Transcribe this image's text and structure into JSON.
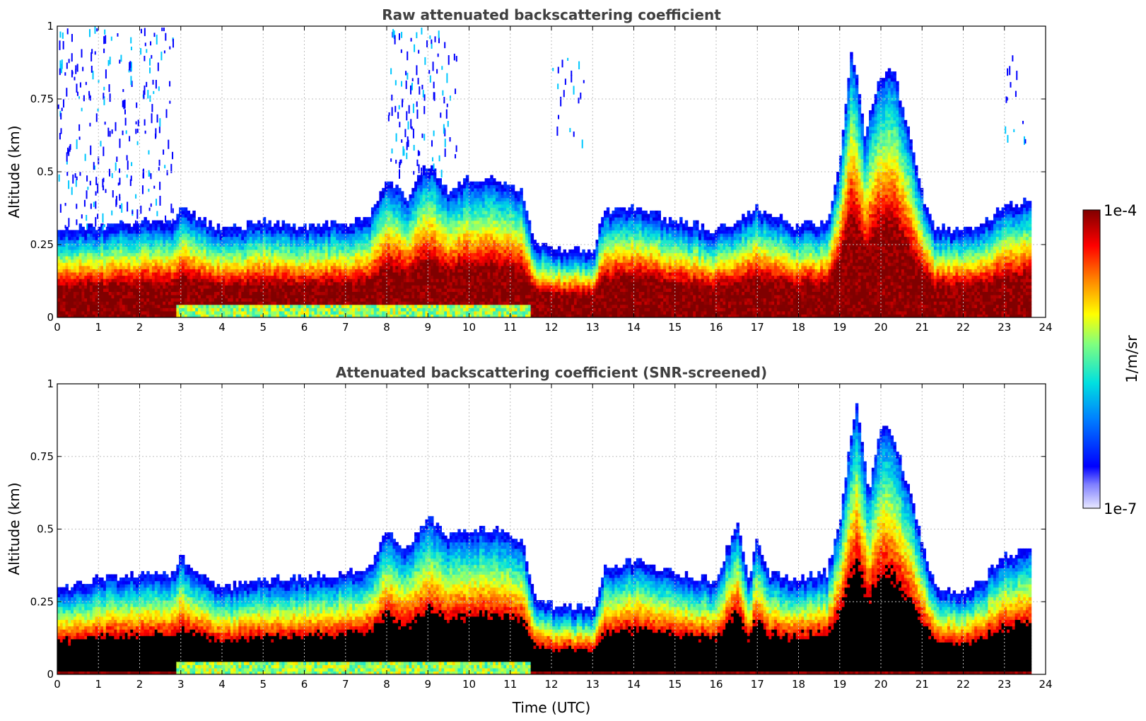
{
  "chart_data": [
    {
      "type": "heatmap",
      "title": "Raw attenuated backscattering coefficient",
      "xlabel": "",
      "ylabel": "Altitude (km)",
      "xlim": [
        0,
        24
      ],
      "ylim": [
        0,
        1
      ],
      "xticks": [
        "0",
        "1",
        "2",
        "3",
        "4",
        "5",
        "6",
        "7",
        "8",
        "9",
        "10",
        "11",
        "12",
        "13",
        "14",
        "15",
        "16",
        "17",
        "18",
        "19",
        "20",
        "21",
        "22",
        "23",
        "24"
      ],
      "yticks": [
        "0",
        "0.25",
        "0.5",
        "0.75",
        "1"
      ],
      "grid": true,
      "data_end_time": 23.65,
      "boundary_layer_top_km": [
        [
          0,
          0.27
        ],
        [
          1,
          0.28
        ],
        [
          2,
          0.3
        ],
        [
          2.8,
          0.3
        ],
        [
          3,
          0.35
        ],
        [
          4,
          0.27
        ],
        [
          5,
          0.3
        ],
        [
          6,
          0.28
        ],
        [
          7,
          0.3
        ],
        [
          7.5,
          0.3
        ],
        [
          8,
          0.45
        ],
        [
          8.5,
          0.38
        ],
        [
          9,
          0.5
        ],
        [
          9.5,
          0.4
        ],
        [
          10,
          0.45
        ],
        [
          10.7,
          0.45
        ],
        [
          11.3,
          0.4
        ],
        [
          11.6,
          0.23
        ],
        [
          12,
          0.21
        ],
        [
          13,
          0.2
        ],
        [
          13.3,
          0.33
        ],
        [
          14,
          0.35
        ],
        [
          15,
          0.3
        ],
        [
          16,
          0.27
        ],
        [
          16.5,
          0.3
        ],
        [
          17,
          0.35
        ],
        [
          18,
          0.28
        ],
        [
          18.7,
          0.3
        ],
        [
          19,
          0.5
        ],
        [
          19.3,
          0.9
        ],
        [
          19.6,
          0.6
        ],
        [
          20,
          0.8
        ],
        [
          20.3,
          0.82
        ],
        [
          20.6,
          0.65
        ],
        [
          21,
          0.4
        ],
        [
          21.3,
          0.28
        ],
        [
          22,
          0.27
        ],
        [
          22.5,
          0.29
        ],
        [
          23,
          0.35
        ],
        [
          23.65,
          0.38
        ]
      ],
      "notes": "Dense residual layer (~1e-4 1/m/sr) below ~0.2 km most of the day; elevated aerosol/cloud layers near 19-21 UTC up to ~0.9 km; sparse noise speckles above 0.5 km before 3 UTC and near 8-9.5 UTC."
    },
    {
      "type": "heatmap",
      "title": "Attenuated backscattering coefficient (SNR-screened)",
      "xlabel": "Time (UTC)",
      "ylabel": "Altitude (km)",
      "xlim": [
        0,
        24
      ],
      "ylim": [
        0,
        1
      ],
      "xticks": [
        "0",
        "1",
        "2",
        "3",
        "4",
        "5",
        "6",
        "7",
        "8",
        "9",
        "10",
        "11",
        "12",
        "13",
        "14",
        "15",
        "16",
        "17",
        "18",
        "19",
        "20",
        "21",
        "22",
        "23",
        "24"
      ],
      "yticks": [
        "0",
        "0.25",
        "0.5",
        "0.75",
        "1"
      ],
      "grid": true,
      "data_end_time": 23.65,
      "boundary_layer_top_km": [
        [
          0,
          0.26
        ],
        [
          1,
          0.3
        ],
        [
          2,
          0.32
        ],
        [
          2.8,
          0.32
        ],
        [
          3,
          0.37
        ],
        [
          4,
          0.27
        ],
        [
          5,
          0.3
        ],
        [
          6,
          0.3
        ],
        [
          7,
          0.32
        ],
        [
          7.5,
          0.32
        ],
        [
          8,
          0.47
        ],
        [
          8.5,
          0.4
        ],
        [
          9,
          0.52
        ],
        [
          9.5,
          0.45
        ],
        [
          10,
          0.47
        ],
        [
          10.7,
          0.47
        ],
        [
          11.3,
          0.42
        ],
        [
          11.6,
          0.23
        ],
        [
          12,
          0.21
        ],
        [
          13,
          0.2
        ],
        [
          13.3,
          0.33
        ],
        [
          14,
          0.36
        ],
        [
          15,
          0.32
        ],
        [
          16,
          0.29
        ],
        [
          16.5,
          0.5
        ],
        [
          16.8,
          0.3
        ],
        [
          17,
          0.44
        ],
        [
          17.3,
          0.32
        ],
        [
          18,
          0.3
        ],
        [
          18.7,
          0.32
        ],
        [
          19,
          0.5
        ],
        [
          19.4,
          0.92
        ],
        [
          19.7,
          0.6
        ],
        [
          20,
          0.82
        ],
        [
          20.3,
          0.8
        ],
        [
          20.7,
          0.6
        ],
        [
          21,
          0.42
        ],
        [
          21.3,
          0.28
        ],
        [
          22,
          0.25
        ],
        [
          22.5,
          0.3
        ],
        [
          23,
          0.38
        ],
        [
          23.65,
          0.4
        ]
      ],
      "notes": "Screened pixels (low SNR) removed; saturated dense core shown in black below ~0.25 km."
    }
  ],
  "colorbar": {
    "max_label": "1e-4",
    "min_label": "1e-7",
    "unit_label": "1/m/sr",
    "scale": "log",
    "range": [
      1e-07,
      0.0001
    ]
  }
}
